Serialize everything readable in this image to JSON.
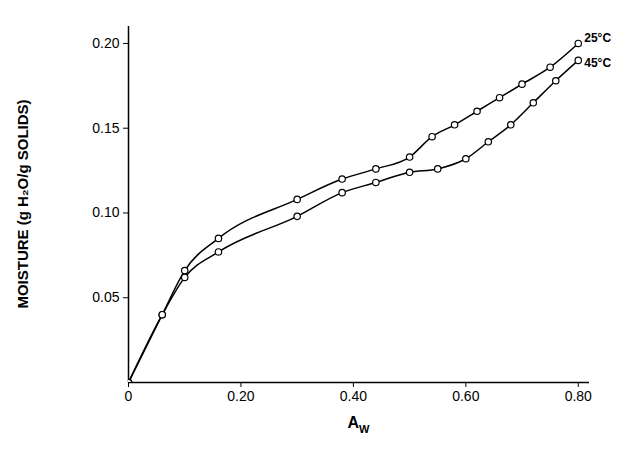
{
  "chart_data": {
    "type": "line",
    "x_label": "AW",
    "y_label": "MOISTURE (g H₂O/g SOLIDS)",
    "xlim": [
      0,
      0.82
    ],
    "ylim": [
      0,
      0.21
    ],
    "xticks": [
      0,
      {
        "value": 0.2,
        "label": "0.20"
      },
      {
        "value": 0.4,
        "label": "0.40"
      },
      {
        "value": 0.6,
        "label": "0.60"
      },
      {
        "value": 0.8,
        "label": "0.80"
      }
    ],
    "yticks": [
      0.05,
      {
        "value": 0.1,
        "label": "0.10"
      },
      0.15,
      {
        "value": 0.2,
        "label": "0.20"
      }
    ],
    "marker": "circle",
    "series": [
      {
        "name": "25°C",
        "color": "#000000",
        "x": [
          0,
          0.06,
          0.1,
          0.16,
          0.3,
          0.38,
          0.44,
          0.5,
          0.54,
          0.58,
          0.62,
          0.66,
          0.7,
          0.75,
          0.8
        ],
        "values": [
          0,
          0.04,
          0.066,
          0.085,
          0.108,
          0.12,
          0.126,
          0.133,
          0.145,
          0.152,
          0.16,
          0.168,
          0.176,
          0.186,
          0.2
        ]
      },
      {
        "name": "45°C",
        "color": "#000000",
        "x": [
          0,
          0.06,
          0.1,
          0.16,
          0.3,
          0.38,
          0.44,
          0.5,
          0.55,
          0.6,
          0.64,
          0.68,
          0.72,
          0.76,
          0.8
        ],
        "values": [
          0,
          0.04,
          0.062,
          0.077,
          0.098,
          0.112,
          0.118,
          0.124,
          0.126,
          0.132,
          0.142,
          0.152,
          0.165,
          0.178,
          0.19
        ]
      }
    ]
  }
}
